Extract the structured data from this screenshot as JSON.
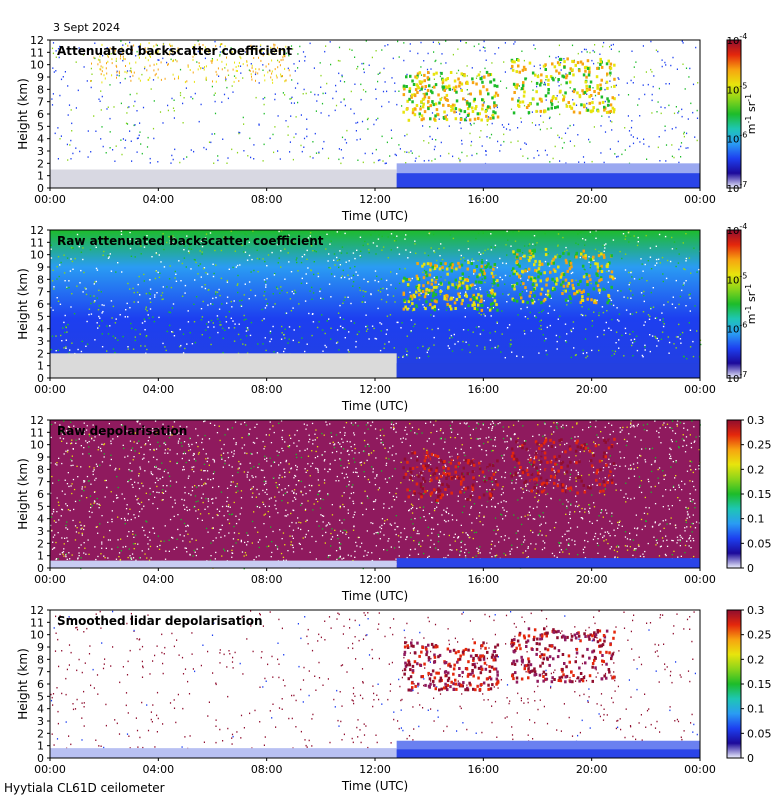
{
  "date_label": "3 Sept 2024",
  "footer_label": "Hyytiala CL61D ceilometer",
  "chart_data": [
    {
      "type": "heatmap",
      "title": "Attenuated backscatter coefficient",
      "xlabel": "Time (UTC)",
      "ylabel": "Height (km)",
      "x_ticks": [
        "00:00",
        "04:00",
        "08:00",
        "12:00",
        "16:00",
        "20:00",
        "00:00"
      ],
      "y_ticks": [
        "0",
        "1",
        "2",
        "3",
        "4",
        "5",
        "6",
        "7",
        "8",
        "9",
        "10",
        "11",
        "12"
      ],
      "xlim_hours": [
        0,
        24
      ],
      "ylim_km": [
        0,
        12
      ],
      "colorbar": {
        "scale": "log",
        "range": [
          1e-07,
          0.0001
        ],
        "ticks": [
          "10",
          "10",
          "10",
          "10"
        ],
        "tick_exponents": [
          "-4",
          "-5",
          "-6",
          "-7"
        ],
        "unit_parts": [
          "m",
          "-1",
          " sr",
          "-1"
        ]
      },
      "features": [
        {
          "name": "cloud",
          "start_h": 13.0,
          "end_h": 16.5,
          "base_km": 5.6,
          "top_km": 9.5
        },
        {
          "name": "cloud",
          "start_h": 17.0,
          "end_h": 20.8,
          "base_km": 6.2,
          "top_km": 10.6
        },
        {
          "name": "boundary-layer",
          "start_h": 12.8,
          "end_h": 24,
          "base_km": 0,
          "top_km": 1.2
        }
      ]
    },
    {
      "type": "heatmap",
      "title": "Raw attenuated backscatter coefficient",
      "xlabel": "Time (UTC)",
      "ylabel": "Height (km)",
      "x_ticks": [
        "00:00",
        "04:00",
        "08:00",
        "12:00",
        "16:00",
        "20:00",
        "00:00"
      ],
      "y_ticks": [
        "0",
        "1",
        "2",
        "3",
        "4",
        "5",
        "6",
        "7",
        "8",
        "9",
        "10",
        "11",
        "12"
      ],
      "xlim_hours": [
        0,
        24
      ],
      "ylim_km": [
        0,
        12
      ],
      "colorbar": {
        "scale": "log",
        "range": [
          1e-07,
          0.0001
        ],
        "ticks": [
          "10",
          "10",
          "10",
          "10"
        ],
        "tick_exponents": [
          "-4",
          "-5",
          "-6",
          "-7"
        ],
        "unit_parts": [
          "m",
          "-1",
          " sr",
          "-1"
        ]
      }
    },
    {
      "type": "heatmap",
      "title": "Raw depolarisation",
      "xlabel": "Time (UTC)",
      "ylabel": "Height (km)",
      "x_ticks": [
        "00:00",
        "04:00",
        "08:00",
        "12:00",
        "16:00",
        "20:00",
        "00:00"
      ],
      "y_ticks": [
        "0",
        "1",
        "2",
        "3",
        "4",
        "5",
        "6",
        "7",
        "8",
        "9",
        "10",
        "11",
        "12"
      ],
      "xlim_hours": [
        0,
        24
      ],
      "ylim_km": [
        0,
        12
      ],
      "colorbar": {
        "scale": "linear",
        "range": [
          0,
          0.3
        ],
        "ticks": [
          "0.3",
          "0.25",
          "0.2",
          "0.15",
          "0.1",
          "0.05",
          "0"
        ]
      }
    },
    {
      "type": "heatmap",
      "title": "Smoothed lidar depolarisation",
      "xlabel": "Time (UTC)",
      "ylabel": "Height (km)",
      "x_ticks": [
        "00:00",
        "04:00",
        "08:00",
        "12:00",
        "16:00",
        "20:00",
        "00:00"
      ],
      "y_ticks": [
        "0",
        "1",
        "2",
        "3",
        "4",
        "5",
        "6",
        "7",
        "8",
        "9",
        "10",
        "11",
        "12"
      ],
      "xlim_hours": [
        0,
        24
      ],
      "ylim_km": [
        0,
        12
      ],
      "colorbar": {
        "scale": "linear",
        "range": [
          0,
          0.3
        ],
        "ticks": [
          "0.3",
          "0.25",
          "0.2",
          "0.15",
          "0.1",
          "0.05",
          "0"
        ]
      }
    }
  ]
}
